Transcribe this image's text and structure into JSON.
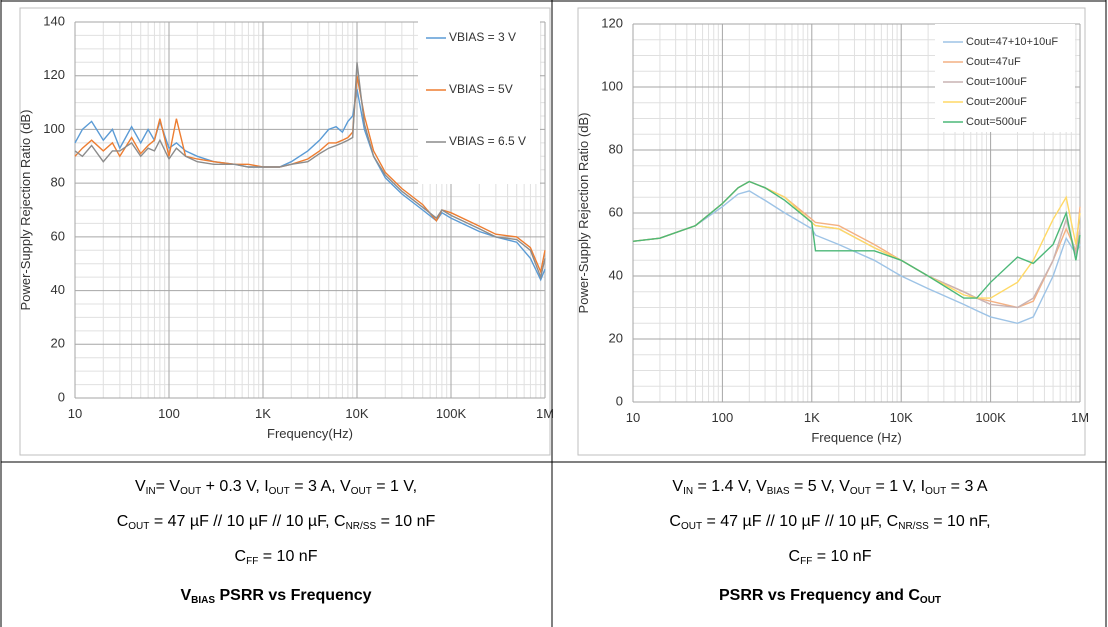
{
  "chart_data": [
    {
      "type": "line",
      "xscale": "log",
      "grid": true,
      "legend": "upper right",
      "x_label": "Frequency(Hz)",
      "y_label": "Power-Supply Rejection Ratio (dB)",
      "xlim": [
        10,
        1000000
      ],
      "ylim": [
        0,
        140
      ],
      "xticks": [
        10,
        100,
        {
          "value": 1000,
          "label": "1K"
        },
        {
          "value": 10000,
          "label": "10K"
        },
        {
          "value": 100000,
          "label": "100K"
        },
        {
          "value": 1000000,
          "label": "1M"
        }
      ],
      "yticks": [
        0,
        20,
        40,
        60,
        80,
        100,
        120,
        140
      ],
      "x": [
        10,
        12,
        15,
        20,
        25,
        30,
        40,
        50,
        60,
        70,
        80,
        100,
        120,
        150,
        200,
        300,
        500,
        700,
        1000,
        1500,
        2000,
        3000,
        4000,
        5000,
        6000,
        7000,
        8000,
        9000,
        10000,
        12000,
        15000,
        20000,
        30000,
        50000,
        70000,
        80000,
        100000,
        200000,
        300000,
        500000,
        700000,
        900000,
        1000000
      ],
      "series": [
        {
          "name": "VBIAS = 3 V",
          "color": "#5b9bd5",
          "values": [
            95,
            100,
            103,
            96,
            100,
            93,
            101,
            95,
            100,
            96,
            103,
            93,
            95,
            92,
            90,
            88,
            87,
            86,
            86,
            86,
            88,
            92,
            96,
            100,
            101,
            99,
            103,
            105,
            115,
            100,
            90,
            82,
            76,
            70,
            66,
            69,
            67,
            62,
            60,
            58,
            52,
            44,
            48
          ]
        },
        {
          "name": "VBIAS = 5V",
          "color": "#ed7d31",
          "values": [
            90,
            93,
            96,
            92,
            95,
            90,
            97,
            91,
            94,
            96,
            104,
            90,
            104,
            90,
            89,
            88,
            87,
            87,
            86,
            86,
            87,
            89,
            92,
            95,
            95,
            96,
            97,
            99,
            120,
            105,
            92,
            84,
            78,
            72,
            66,
            70,
            69,
            64,
            61,
            60,
            56,
            47,
            55
          ]
        },
        {
          "name": "VBIAS = 6.5 V",
          "color": "#8c8c8c",
          "values": [
            92,
            90,
            94,
            88,
            92,
            92,
            95,
            90,
            93,
            92,
            96,
            89,
            93,
            90,
            88,
            87,
            87,
            86,
            86,
            86,
            87,
            88,
            91,
            93,
            94,
            95,
            96,
            97,
            125,
            102,
            90,
            83,
            77,
            71,
            67,
            70,
            68,
            63,
            60,
            59,
            55,
            45,
            52
          ]
        }
      ],
      "caption": [
        [
          "V",
          "IN",
          "= V",
          "OUT",
          " + 0.3 V, I",
          "OUT",
          " = 3 A, V",
          "OUT",
          " = 1 V,"
        ],
        [
          "C",
          "OUT",
          " = 47 µF // 10 µF // 10 µF, C",
          "NR/SS",
          " = 10 nF"
        ],
        [
          "C",
          "FF",
          " = 10 nF"
        ]
      ],
      "title": [
        "V",
        "BIAS",
        " PSRR vs Frequency"
      ]
    },
    {
      "type": "line",
      "xscale": "log",
      "grid": true,
      "legend": "upper right",
      "x_label": "Frequence (Hz)",
      "y_label": "Power-Supply Rejection Ratio (dB)",
      "xlim": [
        10,
        1000000
      ],
      "ylim": [
        0,
        120
      ],
      "xticks": [
        10,
        100,
        {
          "value": 1000,
          "label": "1K"
        },
        {
          "value": 10000,
          "label": "10K"
        },
        {
          "value": 100000,
          "label": "100K"
        },
        {
          "value": 1000000,
          "label": "1M"
        }
      ],
      "yticks": [
        0,
        20,
        40,
        60,
        80,
        100,
        120
      ],
      "x": [
        10,
        20,
        50,
        100,
        150,
        200,
        300,
        500,
        1000,
        1100,
        2000,
        5000,
        10000,
        20000,
        50000,
        70000,
        100000,
        200000,
        300000,
        500000,
        700000,
        900000,
        1000000
      ],
      "series": [
        {
          "name": "Cout=47+10+10uF",
          "color": "#9dc3e6",
          "values": [
            51,
            52,
            56,
            62,
            66,
            67,
            64,
            60,
            55,
            53,
            50,
            45,
            40,
            36,
            31,
            29,
            27,
            25,
            27,
            40,
            52,
            47,
            50
          ]
        },
        {
          "name": "Cout=47uF",
          "color": "#f4b183",
          "values": [
            51,
            52,
            56,
            63,
            68,
            70,
            68,
            65,
            58,
            57,
            56,
            50,
            45,
            40,
            35,
            33,
            32,
            30,
            32,
            45,
            55,
            48,
            62
          ]
        },
        {
          "name": "Cout=100uF",
          "color": "#c9b3b3",
          "values": [
            51,
            52,
            56,
            63,
            68,
            70,
            68,
            65,
            57,
            56,
            55,
            49,
            45,
            40,
            35,
            33,
            31,
            30,
            33,
            45,
            58,
            47,
            55
          ]
        },
        {
          "name": "Cout=200uF",
          "color": "#ffd966",
          "values": [
            51,
            52,
            56,
            63,
            68,
            70,
            68,
            65,
            57,
            56,
            55,
            49,
            45,
            40,
            34,
            33,
            33,
            38,
            45,
            58,
            65,
            50,
            60
          ]
        },
        {
          "name": "Cout=500uF",
          "color": "#4cb878",
          "values": [
            51,
            52,
            56,
            63,
            68,
            70,
            68,
            64,
            57,
            48,
            48,
            48,
            45,
            40,
            33,
            33,
            38,
            46,
            44,
            50,
            60,
            45,
            53
          ]
        }
      ],
      "caption": [
        [
          "V",
          "IN",
          " = 1.4 V, V",
          "BIAS",
          " = 5 V, V",
          "OUT",
          " = 1 V, I",
          "OUT",
          " = 3 A"
        ],
        [
          "C",
          "OUT",
          " = 47 µF // 10 µF // 10 µF, C",
          "NR/SS",
          " = 10 nF,"
        ],
        [
          "C",
          "FF",
          " = 10 nF"
        ]
      ],
      "title": [
        "PSRR vs Frequency and C",
        "OUT"
      ]
    }
  ]
}
